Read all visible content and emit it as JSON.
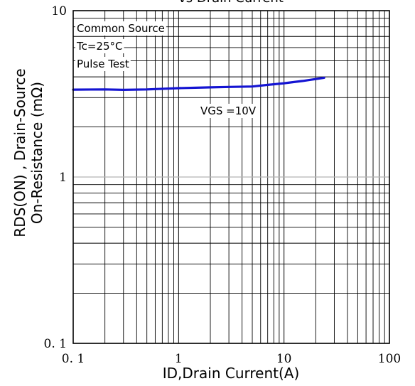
{
  "chart_data": {
    "type": "line",
    "title": "vs Drain Current",
    "xlabel": "ID,Drain Current(A)",
    "ylabel_line1": "RDS(ON) , Drain-Source",
    "ylabel_line2": "On-Resistance (mΩ)",
    "xscale": "log",
    "yscale": "log",
    "xlim": [
      0.1,
      100
    ],
    "ylim": [
      0.1,
      10
    ],
    "grid": true,
    "x_ticks": [
      {
        "value": 0.1,
        "label": "0. 1"
      },
      {
        "value": 1,
        "label": "1"
      },
      {
        "value": 10,
        "label": "10"
      },
      {
        "value": 100,
        "label": "100"
      }
    ],
    "y_ticks": [
      {
        "value": 0.1,
        "label": "0. 1"
      },
      {
        "value": 1,
        "label": "1"
      },
      {
        "value": 10,
        "label": "10"
      }
    ],
    "annotations": [
      {
        "text": "Common Source"
      },
      {
        "text": "Tc=25°C"
      },
      {
        "text": "Pulse Test"
      },
      {
        "text": "VGS =10V"
      }
    ],
    "series": [
      {
        "color": "#1414d2",
        "x": [
          0.1,
          0.2,
          0.3,
          0.5,
          1,
          2,
          3,
          5,
          7,
          10,
          15,
          24
        ],
        "y": [
          3.35,
          3.36,
          3.34,
          3.36,
          3.42,
          3.46,
          3.48,
          3.5,
          3.58,
          3.66,
          3.78,
          3.95
        ]
      }
    ]
  }
}
